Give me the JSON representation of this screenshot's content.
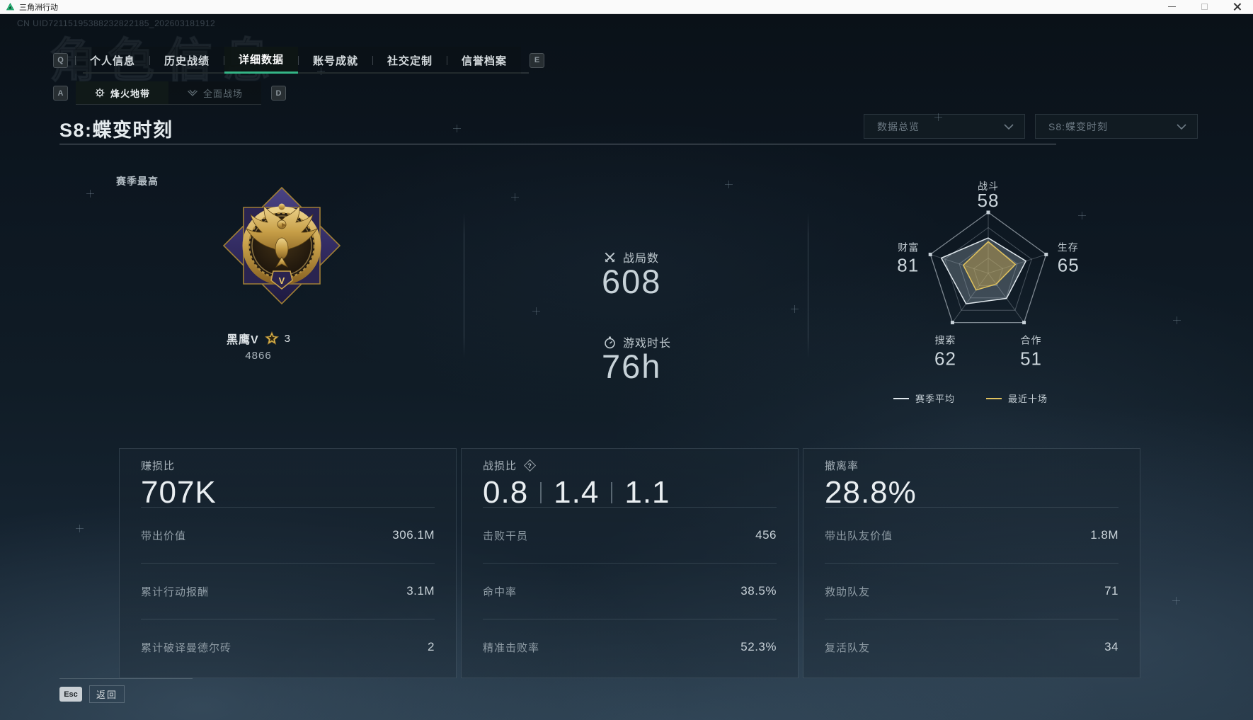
{
  "window": {
    "title": "三角洲行动"
  },
  "page": {
    "uid": "CN UID72115195388232822185_202603181912",
    "ghost_title": "角色信息"
  },
  "nav": {
    "key_hints": {
      "tabs_left": "Q",
      "tabs_right": "E",
      "subtabs_left": "A",
      "subtabs_right": "D"
    },
    "tabs": [
      {
        "label": "个人信息"
      },
      {
        "label": "历史战绩"
      },
      {
        "label": "详细数据"
      },
      {
        "label": "账号成就"
      },
      {
        "label": "社交定制"
      },
      {
        "label": "信誉档案"
      }
    ],
    "subtabs": [
      {
        "label": "烽火地带"
      },
      {
        "label": "全面战场"
      }
    ]
  },
  "season": {
    "title": "S8:蝶变时刻",
    "filters": [
      {
        "value": "数据总览"
      },
      {
        "value": "S8:蝶变时刻"
      }
    ],
    "season_best_label": "赛季最高",
    "rank": {
      "name": "黑鹰V",
      "tier": "V",
      "star_count": "3",
      "score": "4866"
    },
    "stats": [
      {
        "label": "战局数",
        "value": "608",
        "icon": "crossed-swords-icon"
      },
      {
        "label": "游戏时长",
        "value": "76h",
        "icon": "stopwatch-icon"
      }
    ]
  },
  "chart_data": {
    "type": "radar",
    "categories": [
      "战斗",
      "生存",
      "合作",
      "搜索",
      "财富"
    ],
    "axis_max": 100,
    "grid_levels": 4,
    "legend_position": "bottom",
    "series": [
      {
        "name": "赛季平均",
        "values": [
          58,
          65,
          51,
          62,
          81
        ],
        "color": "#dfe7ec",
        "fill": "rgba(170,185,196,0.30)"
      },
      {
        "name": "最近十场",
        "values": [
          52,
          47,
          22,
          34,
          43
        ],
        "color": "#e0c25e",
        "fill": "rgba(205,170,80,0.45)"
      }
    ],
    "value_labels": [
      "58",
      "65",
      "51",
      "62",
      "81"
    ]
  },
  "cards": [
    {
      "title": "赚损比",
      "value": "707K",
      "rows": [
        {
          "label": "带出价值",
          "value": "306.1M"
        },
        {
          "label": "累计行动报酬",
          "value": "3.1M"
        },
        {
          "label": "累计破译曼德尔砖",
          "value": "2"
        }
      ]
    },
    {
      "title": "战损比",
      "help_icon": "?",
      "values": [
        "0.8",
        "1.4",
        "1.1"
      ],
      "rows": [
        {
          "label": "击败干员",
          "value": "456"
        },
        {
          "label": "命中率",
          "value": "38.5%"
        },
        {
          "label": "精准击败率",
          "value": "52.3%"
        }
      ]
    },
    {
      "title": "撤离率",
      "value": "28.8%",
      "rows": [
        {
          "label": "带出队友价值",
          "value": "1.8M"
        },
        {
          "label": "救助队友",
          "value": "71"
        },
        {
          "label": "复活队友",
          "value": "34"
        }
      ]
    }
  ],
  "footer": {
    "esc_key": "Esc",
    "back_label": "返回"
  },
  "colors": {
    "accent_green": "#34b586",
    "series_avg": "#dfe7ec",
    "series_recent": "#e0c25e"
  }
}
